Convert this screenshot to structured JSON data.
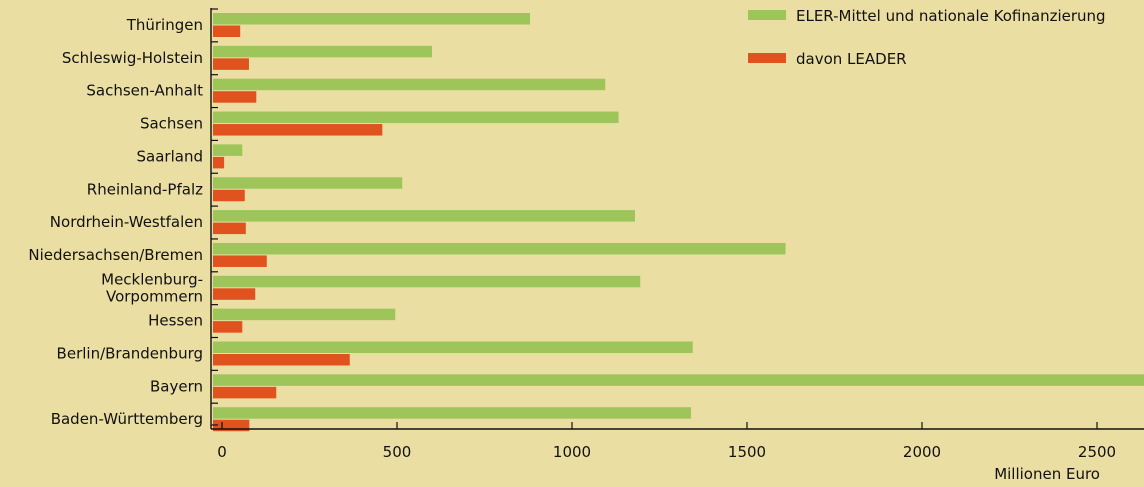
{
  "chart_data": {
    "type": "bar",
    "orientation": "horizontal",
    "categories": [
      "Thüringen",
      "Schleswig-Holstein",
      "Sachsen-Anhalt",
      "Sachsen",
      "Saarland",
      "Rheinland-Pfalz",
      "Nordrhein-Westfalen",
      "Niedersachsen/Bremen",
      "Mecklenburg-Vorpommern",
      "Hessen",
      "Berlin/Brandenburg",
      "Bayern",
      "Baden-Württemberg"
    ],
    "category_labels": [
      [
        "Thüringen"
      ],
      [
        "Schleswig-Holstein"
      ],
      [
        "Sachsen-Anhalt"
      ],
      [
        "Sachsen"
      ],
      [
        "Saarland"
      ],
      [
        "Rheinland-Pfalz"
      ],
      [
        "Nordrhein-Westfalen"
      ],
      [
        "Niedersachsen/Bremen"
      ],
      [
        "Mecklenburg-",
        "Vorpommern"
      ],
      [
        "Hessen"
      ],
      [
        "Berlin/Brandenburg"
      ],
      [
        "Bayern"
      ],
      [
        "Baden-Württemberg"
      ]
    ],
    "series": [
      {
        "name": "ELER-Mittel und nationale Kofinanzierung",
        "color": "#9ec55a",
        "values": [
          880,
          600,
          1095,
          1133,
          58,
          515,
          1180,
          1610,
          1195,
          495,
          1345,
          2640,
          1340
        ]
      },
      {
        "name": "davon LEADER",
        "color": "#e0521e",
        "values": [
          52,
          77,
          98,
          458,
          6,
          65,
          68,
          128,
          95,
          58,
          365,
          155,
          78
        ]
      }
    ],
    "xlabel": "Millionen Euro",
    "ylabel": "",
    "xlim": [
      -62,
      2640
    ],
    "xticks": [
      0,
      500,
      1000,
      1500,
      2000,
      2500
    ],
    "grid": false,
    "legend_position": "top-right"
  }
}
